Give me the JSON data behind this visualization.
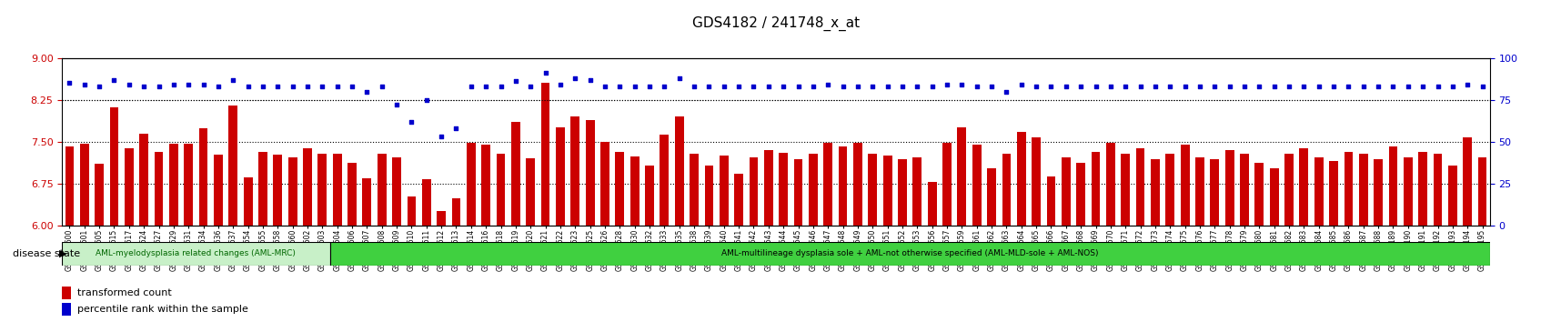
{
  "title": "GDS4182 / 241748_x_at",
  "samples": [
    "GSM531600",
    "GSM531601",
    "GSM531605",
    "GSM531615",
    "GSM531617",
    "GSM531624",
    "GSM531627",
    "GSM531629",
    "GSM531631",
    "GSM531634",
    "GSM531636",
    "GSM531637",
    "GSM531654",
    "GSM531655",
    "GSM531658",
    "GSM531660",
    "GSM531602",
    "GSM531603",
    "GSM531604",
    "GSM531606",
    "GSM531607",
    "GSM531608",
    "GSM531609",
    "GSM531610",
    "GSM531611",
    "GSM531612",
    "GSM531613",
    "GSM531614",
    "GSM531616",
    "GSM531618",
    "GSM531619",
    "GSM531620",
    "GSM531621",
    "GSM531622",
    "GSM531623",
    "GSM531625",
    "GSM531626",
    "GSM531628",
    "GSM531630",
    "GSM531632",
    "GSM531633",
    "GSM531635",
    "GSM531638",
    "GSM531639",
    "GSM531640",
    "GSM531641",
    "GSM531642",
    "GSM531643",
    "GSM531644",
    "GSM531645",
    "GSM531646",
    "GSM531647",
    "GSM531648",
    "GSM531649",
    "GSM531650",
    "GSM531651",
    "GSM531652",
    "GSM531653",
    "GSM531656",
    "GSM531657",
    "GSM531659",
    "GSM531661",
    "GSM531662",
    "GSM531663",
    "GSM531664",
    "GSM531665",
    "GSM531666",
    "GSM531667",
    "GSM531668",
    "GSM531669",
    "GSM531670",
    "GSM531671",
    "GSM531672",
    "GSM531673",
    "GSM531674",
    "GSM531675",
    "GSM531676",
    "GSM531677",
    "GSM531678",
    "GSM531679",
    "GSM531680",
    "GSM531681",
    "GSM531682",
    "GSM531683",
    "GSM531684",
    "GSM531685",
    "GSM531686",
    "GSM531687",
    "GSM531688",
    "GSM531189",
    "GSM531190",
    "GSM531191",
    "GSM531192",
    "GSM531193",
    "GSM531194",
    "GSM531195"
  ],
  "bar_values": [
    7.42,
    7.46,
    7.1,
    8.12,
    7.38,
    7.65,
    7.32,
    7.46,
    7.46,
    7.74,
    7.27,
    8.14,
    6.86,
    7.32,
    7.26,
    7.22,
    7.38,
    7.28,
    7.28,
    7.12,
    6.85,
    7.28,
    7.22,
    6.52,
    6.82,
    6.25,
    6.48,
    7.48,
    7.44,
    7.28,
    7.85,
    7.2,
    8.55,
    7.75,
    7.95,
    7.88,
    7.5,
    7.32,
    7.24,
    7.08,
    7.62,
    7.95,
    7.28,
    7.08,
    7.25,
    6.92,
    7.22,
    7.35,
    7.3,
    7.18,
    7.28,
    7.48,
    7.42,
    7.48,
    7.28,
    7.25,
    7.18,
    7.22,
    6.78,
    7.48,
    7.75,
    7.45,
    7.02,
    7.28,
    7.68,
    7.58,
    6.88,
    7.22,
    7.12,
    7.32,
    7.48,
    7.28,
    7.38,
    7.18,
    7.28,
    7.45,
    7.22,
    7.18,
    7.35,
    7.28,
    7.12,
    7.02,
    7.28,
    7.38,
    7.22,
    7.15,
    7.32,
    7.28,
    7.18,
    7.42,
    7.22,
    7.32,
    7.28,
    7.08,
    7.58,
    7.22
  ],
  "percentile_values": [
    85,
    84,
    83,
    87,
    84,
    83,
    83,
    84,
    84,
    84,
    83,
    87,
    83,
    83,
    83,
    83,
    83,
    83,
    83,
    83,
    80,
    83,
    72,
    62,
    75,
    53,
    58,
    83,
    83,
    83,
    86,
    83,
    91,
    84,
    88,
    87,
    83,
    83,
    83,
    83,
    83,
    88,
    83,
    83,
    83,
    83,
    83,
    83,
    83,
    83,
    83,
    84,
    83,
    83,
    83,
    83,
    83,
    83,
    83,
    84,
    84,
    83,
    83,
    80,
    84,
    83,
    83,
    83,
    83,
    83,
    83,
    83,
    83,
    83,
    83,
    83,
    83,
    83,
    83,
    83,
    83,
    83,
    83,
    83,
    83,
    83,
    83,
    83,
    83,
    83,
    83,
    83,
    83,
    83,
    84,
    83
  ],
  "group1_count": 18,
  "group1_label": "AML-myelodysplasia related changes (AML-MRC)",
  "group2_label": "AML-multilineage dysplasia sole + AML-not otherwise specified (AML-MLD-sole + AML-NOS)",
  "group1_color": "#c8f0c8",
  "group2_color": "#40d040",
  "disease_state_label": "disease state",
  "bar_color": "#cc0000",
  "dot_color": "#0000cc",
  "ymin": 6.0,
  "ymax": 9.0,
  "yticks": [
    6.0,
    6.75,
    7.5,
    8.25,
    9.0
  ],
  "y2min": 0,
  "y2max": 100,
  "y2ticks": [
    0,
    25,
    50,
    75,
    100
  ],
  "y2ref_line": 75,
  "gridlines": [
    6.75,
    7.5,
    8.25
  ],
  "bar_base": 6.0,
  "background_color": "#ffffff",
  "tick_color": "#cc0000",
  "label_fontsize": 5.5,
  "title_fontsize": 11
}
